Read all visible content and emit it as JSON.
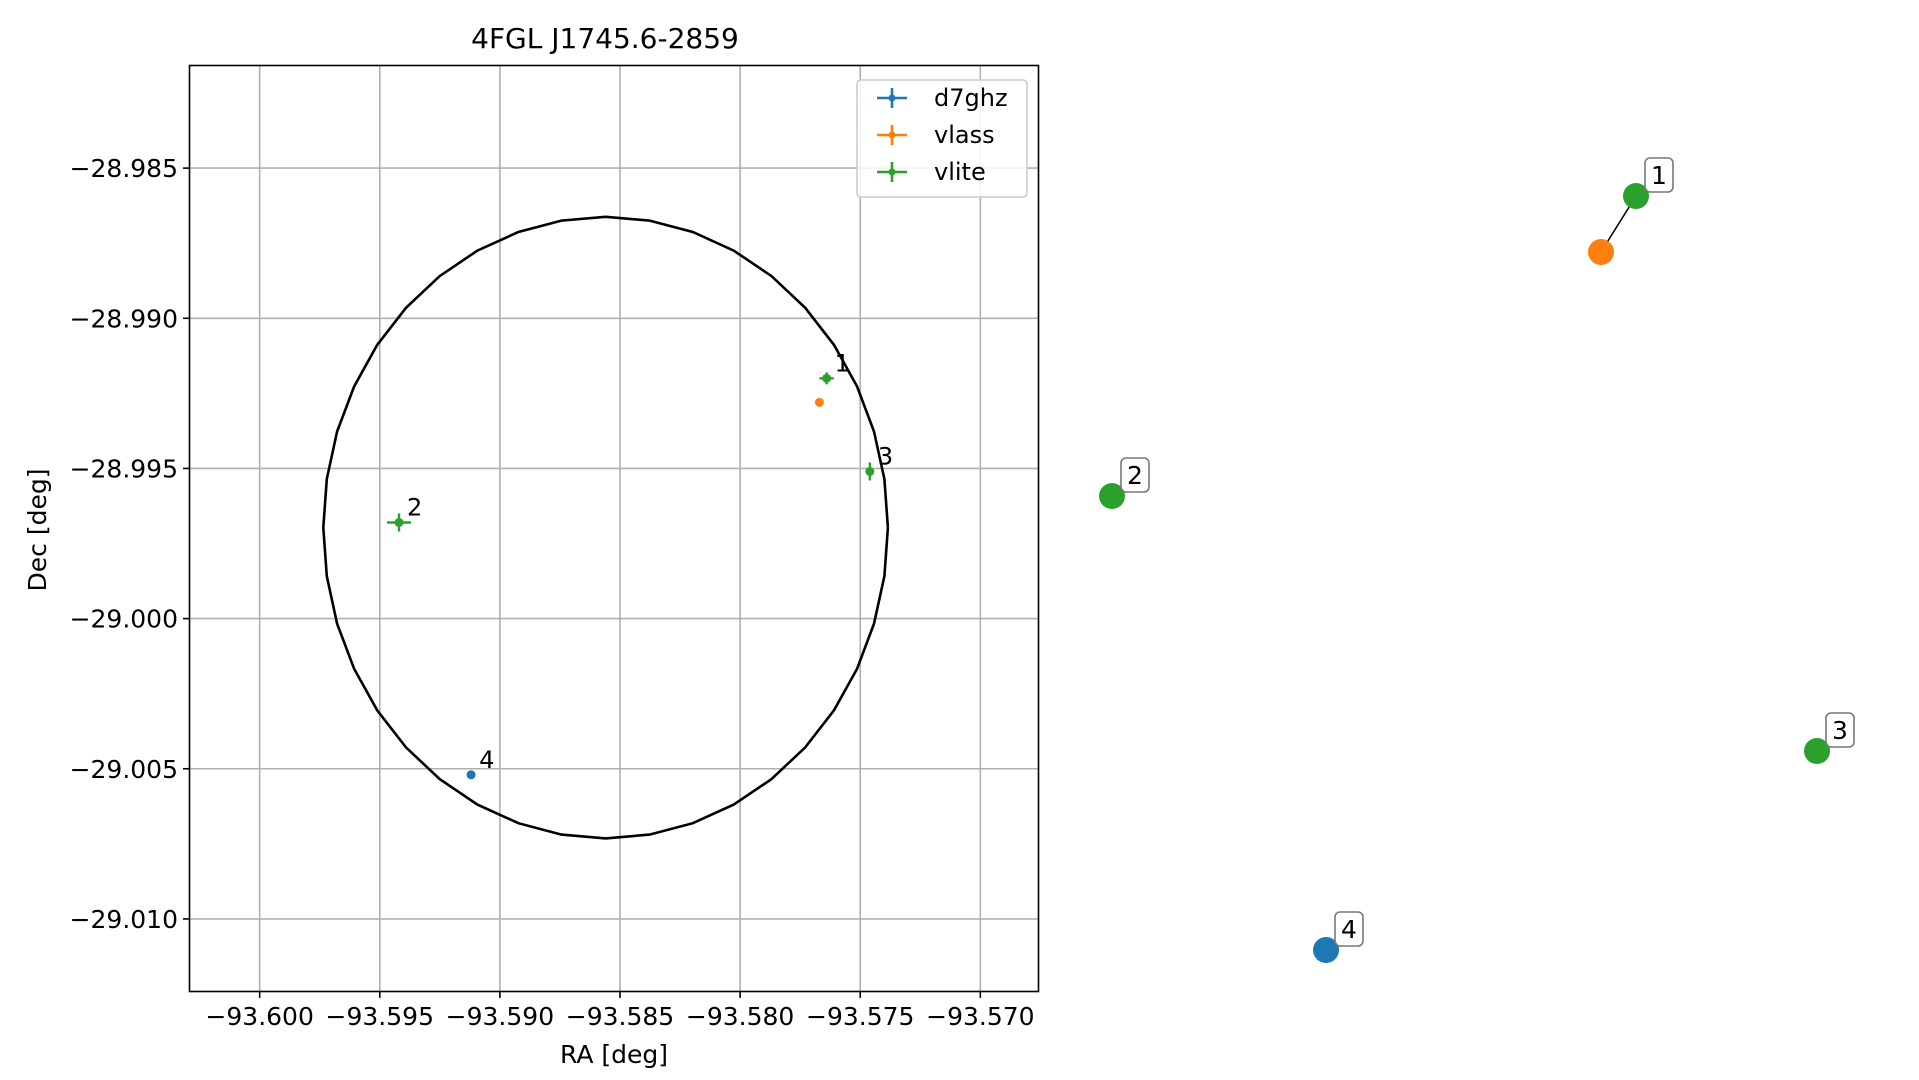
{
  "chart_data": [
    {
      "type": "scatter",
      "title": "4FGL J1745.6-2859",
      "xlabel": "RA [deg]",
      "ylabel": "Dec [deg]",
      "xlim": [
        -93.6029,
        -93.5676
      ],
      "ylim": [
        -29.0124,
        -28.9816
      ],
      "xticks": [
        -93.6,
        -93.595,
        -93.59,
        -93.585,
        -93.58,
        -93.575,
        -93.57
      ],
      "xtick_labels": [
        "−93.600",
        "−93.595",
        "−93.590",
        "−93.585",
        "−93.580",
        "−93.575",
        "−93.570"
      ],
      "yticks": [
        -28.985,
        -28.99,
        -28.995,
        -29.0,
        -29.005,
        -29.01
      ],
      "ytick_labels": [
        "−28.985",
        "−28.990",
        "−28.995",
        "−29.000",
        "−29.005",
        "−29.010"
      ],
      "grid": true,
      "legend_position": "top-right",
      "ellipse": {
        "center": [
          -93.5856,
          -28.99697
        ],
        "semi_axis_ra": 0.01175,
        "semi_axis_dec": 0.01035,
        "color": "#000000"
      },
      "series": [
        {
          "name": "d7ghz",
          "color": "#1f77b4",
          "points": [
            {
              "x": -93.5912,
              "y": -29.0052,
              "label": "4",
              "xerr": 0.0,
              "yerr": 0.0
            }
          ]
        },
        {
          "name": "vlass",
          "color": "#ff7f0e",
          "points": [
            {
              "x": -93.5767,
              "y": -28.9928,
              "label": "",
              "xerr": 0.0,
              "yerr": 0.0
            }
          ]
        },
        {
          "name": "vlite",
          "color": "#2ca02c",
          "points": [
            {
              "x": -93.5764,
              "y": -28.992,
              "label": "1",
              "xerr": 0.0003,
              "yerr": 0.0002
            },
            {
              "x": -93.5942,
              "y": -28.9968,
              "label": "2",
              "xerr": 0.0005,
              "yerr": 0.0003
            },
            {
              "x": -93.5746,
              "y": -28.9951,
              "label": "3",
              "xerr": 0.0001,
              "yerr": 0.0003
            }
          ]
        }
      ]
    },
    {
      "type": "diagram",
      "nodes": [
        {
          "label": "",
          "color": "#ff7f0e"
        },
        {
          "label": "1",
          "color": "#2ca02c"
        },
        {
          "label": "2",
          "color": "#2ca02c"
        },
        {
          "label": "3",
          "color": "#2ca02c"
        },
        {
          "label": "4",
          "color": "#1f77b4"
        }
      ],
      "edges": [
        [
          0,
          1
        ]
      ]
    }
  ]
}
